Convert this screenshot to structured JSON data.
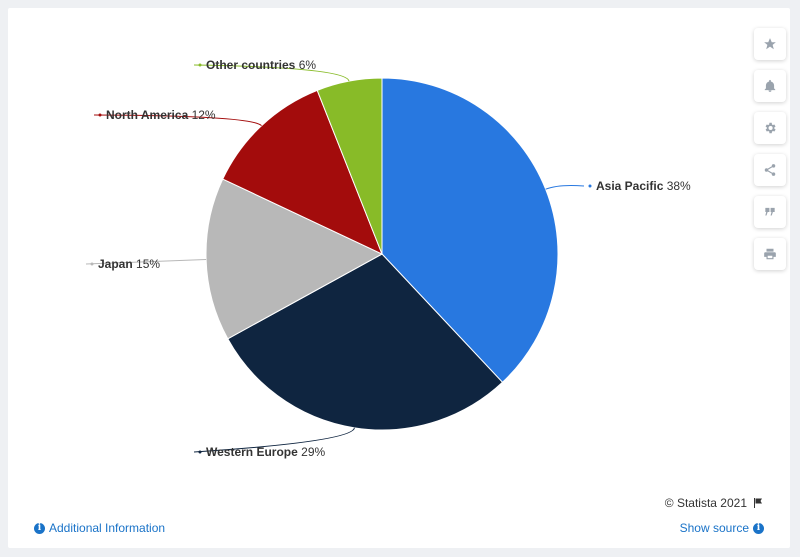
{
  "chart_data": {
    "type": "pie",
    "categories": [
      "Asia Pacific",
      "Western Europe",
      "Japan",
      "North America",
      "Other countries"
    ],
    "values": [
      38,
      29,
      15,
      12,
      6
    ],
    "unit": "%",
    "colors": [
      "#2878e0",
      "#0f2540",
      "#b8b8b8",
      "#a30c0c",
      "#88bb28"
    ]
  },
  "toolbar": {
    "icons": [
      "star-icon",
      "bell-icon",
      "gear-icon",
      "share-icon",
      "quote-icon",
      "print-icon"
    ]
  },
  "footer": {
    "additional_info": "Additional Information",
    "show_source": "Show source",
    "copyright": "© Statista 2021"
  }
}
